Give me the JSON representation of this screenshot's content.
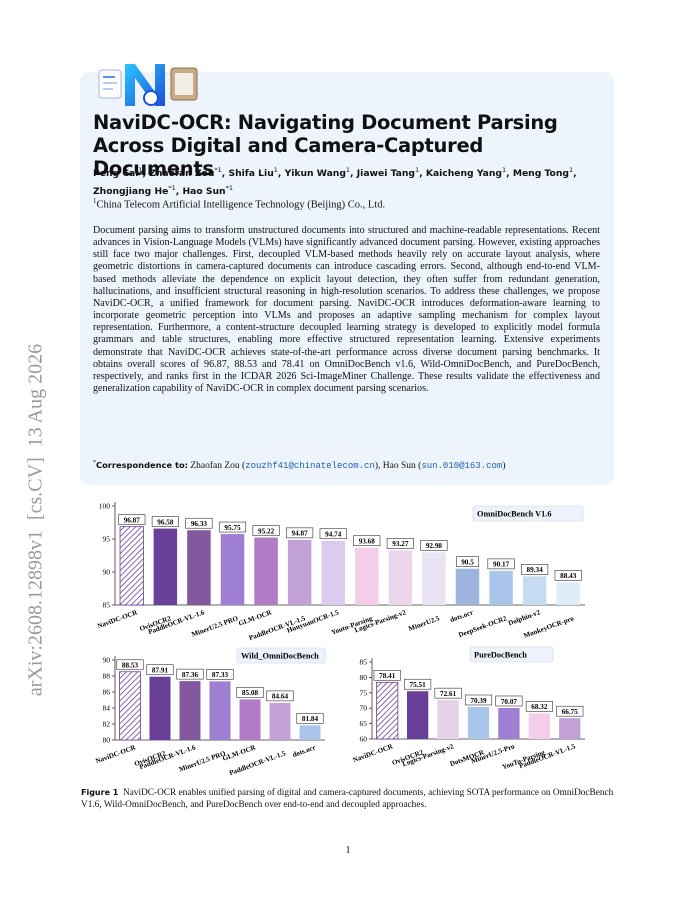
{
  "side_text": "arXiv:2608.12898v1  [cs.CV]  13 Aug 2026",
  "header": {
    "title": "NaviDC-OCR: Navigating Document Parsing Across Digital and Camera-Captured Documents",
    "authors": [
      {
        "name": "Peng Cai",
        "sup": "1",
        "sep": ","
      },
      {
        "name": "Zhaofan Zou",
        "sup": "*1",
        "sep": ","
      },
      {
        "name": "Shifa Liu",
        "sup": "1",
        "sep": ","
      },
      {
        "name": "Yikun Wang",
        "sup": "1",
        "sep": ","
      },
      {
        "name": "Jiawei Tang",
        "sup": "1",
        "sep": ","
      },
      {
        "name": "Kaicheng Yang",
        "sup": "1",
        "sep": ","
      },
      {
        "name": "Meng Tong",
        "sup": "1",
        "sep": ","
      },
      {
        "name": "Zhongjiang He",
        "sup": "*1",
        "sep": ","
      },
      {
        "name": "Hao Sun",
        "sup": "*1"
      }
    ],
    "affiliation": {
      "sup": "1",
      "text": "China Telecom Artificial Intelligence Technology (Beijing) Co., Ltd."
    }
  },
  "abstract": "Document parsing aims to transform unstructured documents into structured and machine-readable representations. Recent advances in Vision-Language Models (VLMs) have significantly advanced document parsing. However, existing approaches still face two major challenges. First, decoupled VLM-based methods heavily rely on accurate layout analysis, where geometric distortions in camera-captured documents can introduce cascading errors. Second, although end-to-end VLM-based methods alleviate the dependence on explicit layout detection, they often suffer from redundant generation, hallucinations, and insufficient structural reasoning in high-resolution scenarios. To address these challenges, we propose NaviDC-OCR, a unified framework for document parsing. NaviDC-OCR introduces deformation-aware learning to incorporate geometric perception into VLMs and proposes an adaptive sampling mechanism for complex layout representation. Furthermore, a content-structure decoupled learning strategy is developed to explicitly model formula grammars and table structures, enabling more effective structured representation learning. Extensive experiments demonstrate that NaviDC-OCR achieves state-of-the-art performance across diverse document parsing benchmarks. It obtains overall scores of 96.87, 88.53 and 78.41 on OmniDocBench v1.6, Wild-OmniDocBench, and PureDocBench, respectively, and ranks first in the ICDAR 2026 Sci-ImageMiner Challenge. These results validate the effectiveness and generalization capability of NaviDC-OCR in complex document parsing scenarios.",
  "correspondence": {
    "sup": "*",
    "label": "Correspondence to:",
    "parts": [
      "Zhaofan Zou (",
      "zouzhf41@chinatelecom.cn",
      "), Hao Sun (",
      "sun.010@163.com",
      ")"
    ]
  },
  "chart_data": [
    {
      "type": "bar",
      "title": "OmniDocBench V1.6",
      "categories": [
        "NaviDC-OCR",
        "OvisOCR2",
        "PaddleOCR-VL-1.6",
        "MinerU2.5 PRO",
        "GLM-OCR",
        "PaddleOCR-VL-1.5",
        "HunyuanOCR-1.5",
        "Youtu-Parsing",
        "Logics-Parsing-v2",
        "MinerU2.5",
        "dots.ocr",
        "DeepSeek-OCR2",
        "Dolphin-v2",
        "MonkeyOCR-pro"
      ],
      "values": [
        96.87,
        96.58,
        96.33,
        95.75,
        95.22,
        94.87,
        94.74,
        93.68,
        93.27,
        92.98,
        90.5,
        90.17,
        89.34,
        88.43
      ],
      "colors": [
        "#6a3f99",
        "#6a3f99",
        "#84589f",
        "#9f7fd1",
        "#b17cc6",
        "#c2a1d9",
        "#dccbf0",
        "#f3cdea",
        "#ecd6ec",
        "#e9e3f3",
        "#9db4dc",
        "#a9c6ea",
        "#c6dcf2",
        "#e0ecf8"
      ],
      "hatched_categories": [
        "NaviDC-OCR"
      ],
      "ylim": [
        85,
        100
      ],
      "yticks": [
        85,
        90,
        95,
        100
      ],
      "grid": false
    },
    {
      "type": "bar",
      "title": "Wild_OmniDocBench",
      "categories": [
        "NaviDC-OCR",
        "OvisOCR2",
        "PaddleOCR-VL-1.6",
        "MinerU2.5 PRO",
        "GLM-OCR",
        "PaddleOCR-VL-1.5",
        "dots.ocr"
      ],
      "values": [
        88.53,
        87.91,
        87.36,
        87.33,
        85.08,
        84.64,
        81.84
      ],
      "colors": [
        "#6a3f99",
        "#6a3f99",
        "#84589f",
        "#9f7fd1",
        "#b17cc6",
        "#c2a1d9",
        "#a9c6ea"
      ],
      "hatched_categories": [
        "NaviDC-OCR"
      ],
      "ylim": [
        80,
        90
      ],
      "yticks": [
        80,
        82,
        84,
        86,
        88,
        90
      ],
      "grid": false
    },
    {
      "type": "bar",
      "title": "PureDocBench",
      "categories": [
        "NaviDC-OCR",
        "OvisOCR2",
        "Logics-Parsing-v2",
        "DotsMOCR",
        "MinerU2.5-Pro",
        "YouTu-Parsing",
        "PaddleOCR-VL-1.5"
      ],
      "values": [
        78.41,
        75.51,
        72.61,
        70.39,
        70.07,
        68.32,
        66.75
      ],
      "colors": [
        "#6a3f99",
        "#6a3f99",
        "#e6d0ea",
        "#a9c6ea",
        "#9f7fd1",
        "#f3cdea",
        "#c2a1d9"
      ],
      "hatched_categories": [
        "NaviDC-OCR"
      ],
      "ylim": [
        60,
        85
      ],
      "yticks": [
        60,
        65,
        70,
        75,
        80,
        85
      ],
      "grid": false
    }
  ],
  "caption": {
    "label": "Figure 1",
    "text": "NaviDC-OCR enables unified parsing of digital and camera-captured documents, achieving SOTA performance on OmniDocBench V1.6, Wild-OmniDocBench, and PureDocBench over end-to-end and decoupled approaches."
  },
  "page_number": "1"
}
